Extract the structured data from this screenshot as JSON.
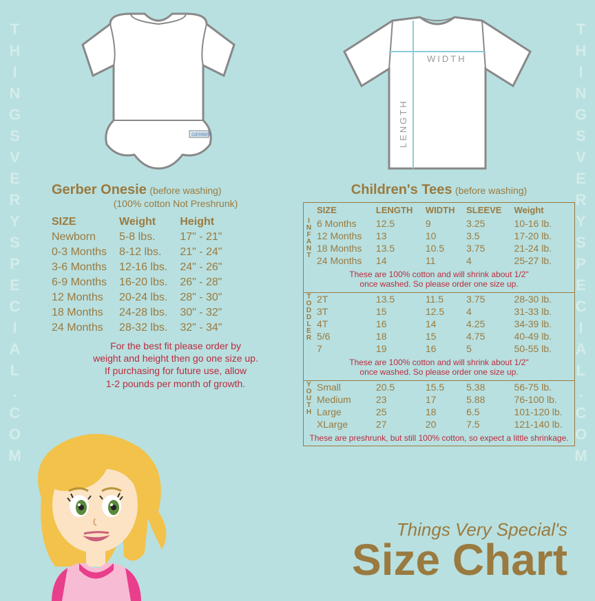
{
  "watermark": "THINGSVERYSPECIAL.COM",
  "onesie": {
    "title": "Gerber Onesie",
    "title_note": "(before washing)",
    "subtitle": "(100% cotton Not Preshrunk)",
    "columns": [
      "SIZE",
      "Weight",
      "Height"
    ],
    "rows": [
      [
        "Newborn",
        "5-8 lbs.",
        "17\" - 21\""
      ],
      [
        "0-3 Months",
        "8-12 lbs.",
        "21\" - 24\""
      ],
      [
        "3-6 Months",
        "12-16 lbs.",
        "24\" - 26\""
      ],
      [
        "6-9 Months",
        "16-20 lbs.",
        "26\" - 28\""
      ],
      [
        "12 Months",
        "20-24 lbs.",
        "28\" - 30\""
      ],
      [
        "18 Months",
        "24-28 lbs.",
        "30\" - 32\""
      ],
      [
        "24 Months",
        "28-32 lbs.",
        "32\" - 34\""
      ]
    ],
    "tip": "For the best fit please order by\nweight and height then go one size up.\nIf purchasing for future use, allow\n1-2 pounds per month of growth."
  },
  "tees": {
    "title": "Children's Tees",
    "title_note": "(before washing)",
    "columns": [
      "SIZE",
      "LENGTH",
      "WIDTH",
      "SLEEVE",
      "Weight"
    ],
    "groups": [
      {
        "label": "INFANT",
        "rows": [
          [
            "6 Months",
            "12.5",
            "9",
            "3.25",
            "10-16 lb."
          ],
          [
            "12 Months",
            "13",
            "10",
            "3.5",
            "17-20 lb."
          ],
          [
            "18 Months",
            "13.5",
            "10.5",
            "3.75",
            "21-24 lb."
          ],
          [
            "24 Months",
            "14",
            "11",
            "4",
            "25-27 lb."
          ]
        ],
        "note": "These are 100% cotton and will shrink about 1/2\"\nonce washed. So please order one size up."
      },
      {
        "label": "TODDLER",
        "rows": [
          [
            "2T",
            "13.5",
            "11.5",
            "3.75",
            "28-30 lb."
          ],
          [
            "3T",
            "15",
            "12.5",
            "4",
            "31-33 lb."
          ],
          [
            "4T",
            "16",
            "14",
            "4.25",
            "34-39 lb."
          ],
          [
            "5/6",
            "18",
            "15",
            "4.75",
            "40-49 lb."
          ],
          [
            "7",
            "19",
            "16",
            "5",
            "50-55 lb."
          ]
        ],
        "note": "These are 100% cotton and will shrink about 1/2\"\nonce washed. So please order one size up."
      },
      {
        "label": "YOUTH",
        "rows": [
          [
            "Small",
            "20.5",
            "15.5",
            "5.38",
            "56-75 lb."
          ],
          [
            "Medium",
            "23",
            "17",
            "5.88",
            "76-100 lb."
          ],
          [
            "Large",
            "25",
            "18",
            "6.5",
            "101-120 lb."
          ],
          [
            "XLarge",
            "27",
            "20",
            "7.5",
            "121-140 lb."
          ]
        ],
        "note": "These are preshrunk, but still 100% cotton, so expect a little shrinkage."
      }
    ]
  },
  "tshirt_labels": {
    "length": "LENGTH",
    "width": "WIDTH"
  },
  "gerber_tag": "GERBER",
  "footer": {
    "line1": "Things Very Special's",
    "line2": "Size Chart"
  },
  "colors": {
    "bg": "#b8e0e0",
    "text": "#9a7a3f",
    "warn": "#b82c3e",
    "garment_outline": "#888888",
    "garment_fill": "#ffffff"
  }
}
